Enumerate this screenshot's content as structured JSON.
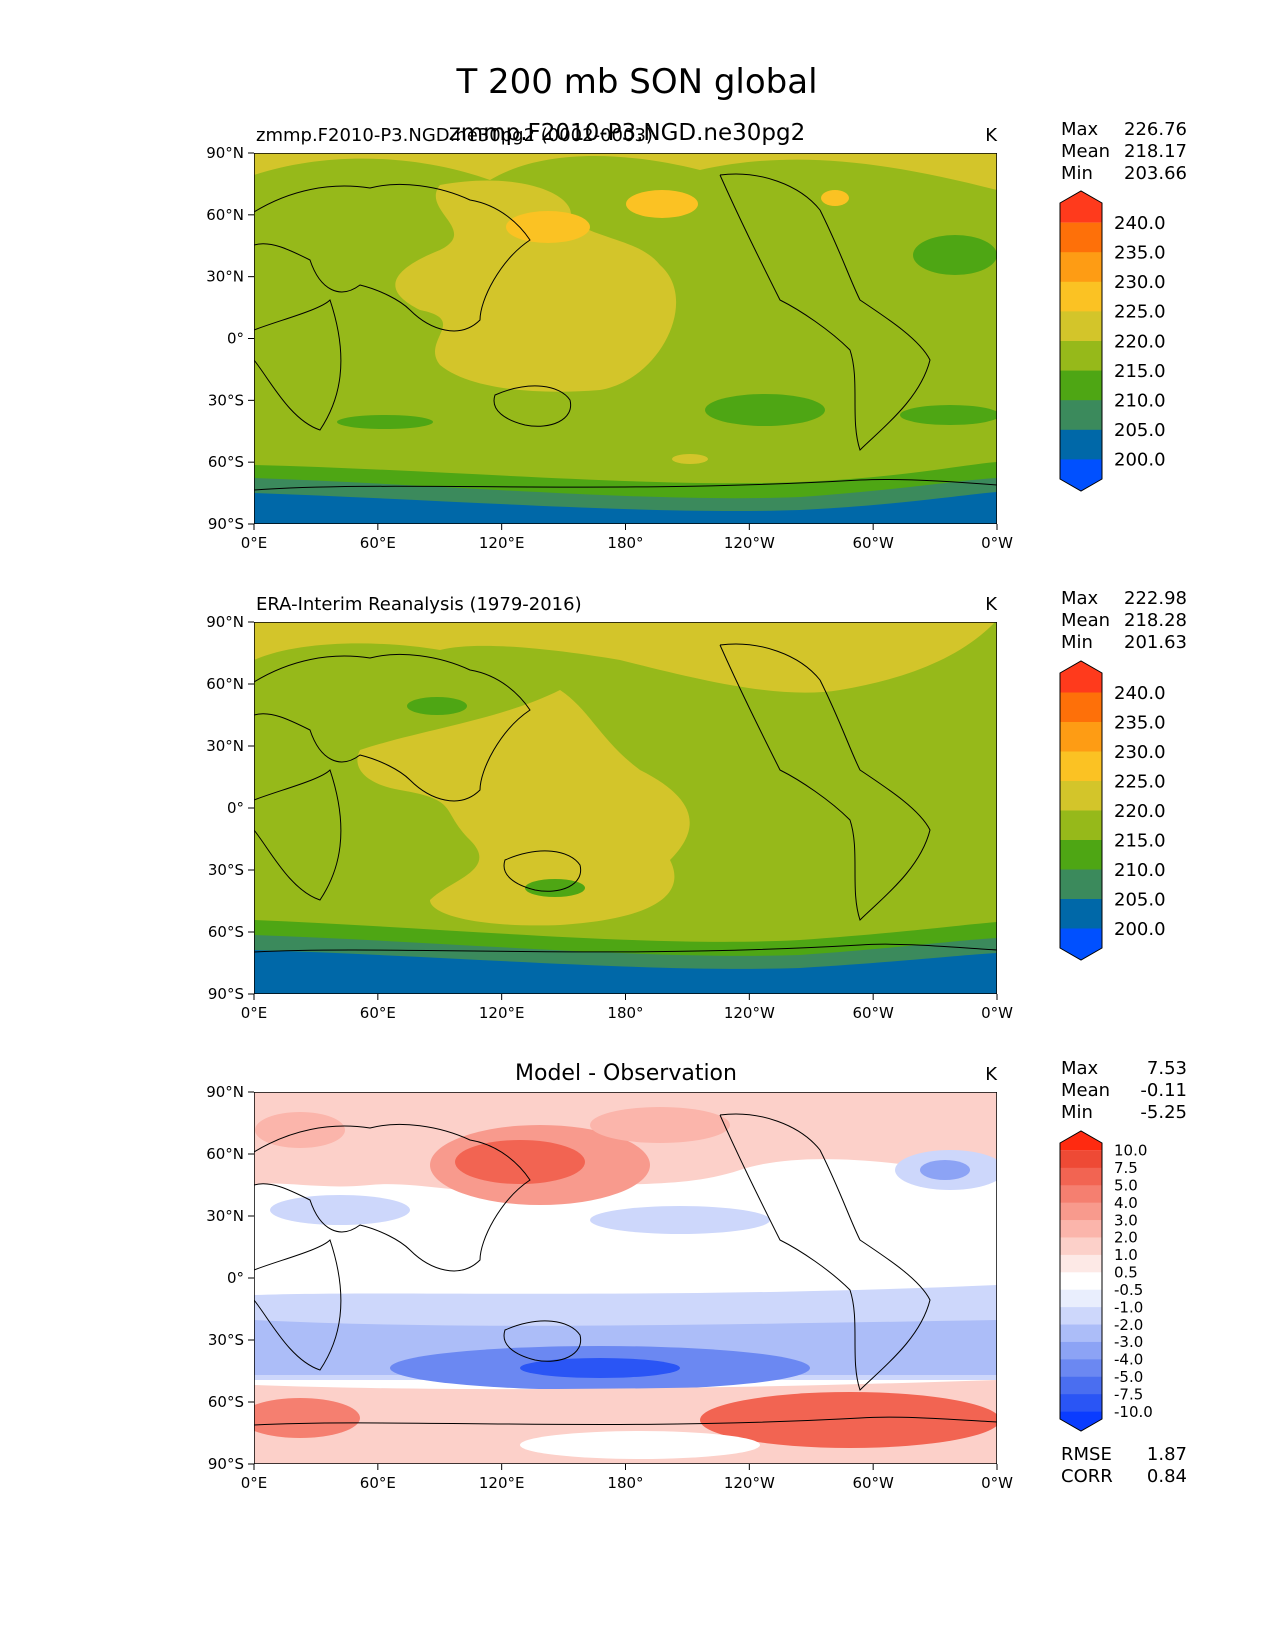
{
  "figure": {
    "title": "T 200 mb SON global",
    "overlap_title": "zmmp.F2010-P3.NGD.ne30pg2"
  },
  "chart_data": [
    {
      "type": "heatmap",
      "panel": "test",
      "title_left": "zmmp.F2010-P3.NGD.ne30pg2 (0002-0003)",
      "units": "K",
      "stats": {
        "max_label": "Max",
        "max": "226.76",
        "mean_label": "Mean",
        "mean": "218.17",
        "min_label": "Min",
        "min": "203.66"
      },
      "x_ticks": [
        "0°E",
        "60°E",
        "120°E",
        "180°",
        "120°W",
        "60°W",
        "0°W"
      ],
      "y_ticks": [
        "90°N",
        "60°N",
        "30°N",
        "0°",
        "30°S",
        "60°S",
        "90°S"
      ],
      "xlim": [
        0,
        360
      ],
      "ylim": [
        -90,
        90
      ],
      "colorbar": {
        "levels": [
          "240.0",
          "235.0",
          "230.0",
          "225.0",
          "220.0",
          "215.0",
          "210.0",
          "205.0",
          "200.0"
        ],
        "colors": [
          "#0050ff",
          "#0068a8",
          "#3b8a5c",
          "#4ea614",
          "#96b91a",
          "#d3c52a",
          "#fbc223",
          "#fe9c14",
          "#fe7009",
          "#ff3a1c"
        ]
      }
    },
    {
      "type": "heatmap",
      "panel": "reference",
      "title_left": "ERA-Interim Reanalysis (1979-2016)",
      "units": "K",
      "stats": {
        "max_label": "Max",
        "max": "222.98",
        "mean_label": "Mean",
        "mean": "218.28",
        "min_label": "Min",
        "min": "201.63"
      },
      "x_ticks": [
        "0°E",
        "60°E",
        "120°E",
        "180°",
        "120°W",
        "60°W",
        "0°W"
      ],
      "y_ticks": [
        "90°N",
        "60°N",
        "30°N",
        "0°",
        "30°S",
        "60°S",
        "90°S"
      ],
      "xlim": [
        0,
        360
      ],
      "ylim": [
        -90,
        90
      ],
      "colorbar": {
        "levels": [
          "240.0",
          "235.0",
          "230.0",
          "225.0",
          "220.0",
          "215.0",
          "210.0",
          "205.0",
          "200.0"
        ],
        "colors": [
          "#0050ff",
          "#0068a8",
          "#3b8a5c",
          "#4ea614",
          "#96b91a",
          "#d3c52a",
          "#fbc223",
          "#fe9c14",
          "#fe7009",
          "#ff3a1c"
        ]
      }
    },
    {
      "type": "heatmap",
      "panel": "difference",
      "title_center": "Model - Observation",
      "units": "K",
      "stats": {
        "max_label": "Max",
        "max": "7.53",
        "mean_label": "Mean",
        "mean": "-0.11",
        "min_label": "Min",
        "min": "-5.25"
      },
      "metrics": {
        "rmse_label": "RMSE",
        "rmse": "1.87",
        "corr_label": "CORR",
        "corr": "0.84"
      },
      "x_ticks": [
        "0°E",
        "60°E",
        "120°E",
        "180°",
        "120°W",
        "60°W",
        "0°W"
      ],
      "y_ticks": [
        "90°N",
        "60°N",
        "30°N",
        "0°",
        "30°S",
        "60°S",
        "90°S"
      ],
      "xlim": [
        0,
        360
      ],
      "ylim": [
        -90,
        90
      ],
      "colorbar": {
        "levels": [
          "10.0",
          "7.5",
          "5.0",
          "4.0",
          "3.0",
          "2.0",
          "1.0",
          "0.5",
          "-0.5",
          "-1.0",
          "-2.0",
          "-3.0",
          "-4.0",
          "-5.0",
          "-7.5",
          "-10.0"
        ],
        "colors": [
          "#0a3cff",
          "#2a55f5",
          "#4a6ef0",
          "#6b88f2",
          "#8ca3f5",
          "#acbdf8",
          "#cdd7fb",
          "#e9eefd",
          "#ffffff",
          "#fde9e6",
          "#fcd0c9",
          "#fbb5ab",
          "#f89a8d",
          "#f57f70",
          "#f26452",
          "#ee4a35",
          "#ff2a10"
        ]
      }
    }
  ]
}
